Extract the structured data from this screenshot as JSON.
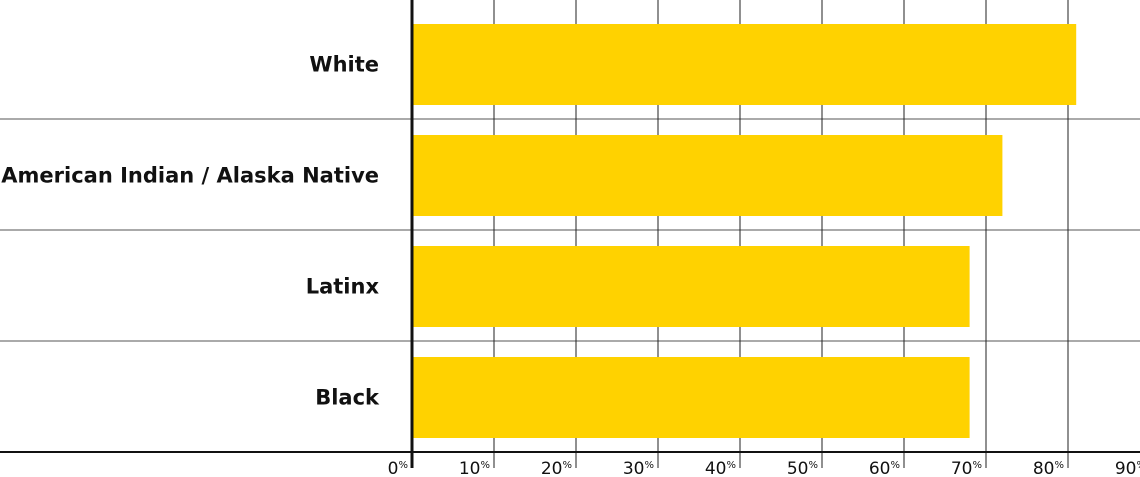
{
  "chart_data": {
    "type": "bar",
    "orientation": "horizontal",
    "categories": [
      "White",
      "American Indian / Alaska Native",
      "Latinx",
      "Black"
    ],
    "series": [
      {
        "values": [
          81,
          72,
          68,
          68
        ]
      }
    ],
    "xlim": [
      0,
      90
    ],
    "x_ticks": [
      0,
      10,
      20,
      30,
      40,
      50,
      60,
      70,
      80,
      90
    ],
    "tick_suffix": "%",
    "grid": true,
    "bar_color": "#FFD200",
    "grid_color": "#222222"
  }
}
